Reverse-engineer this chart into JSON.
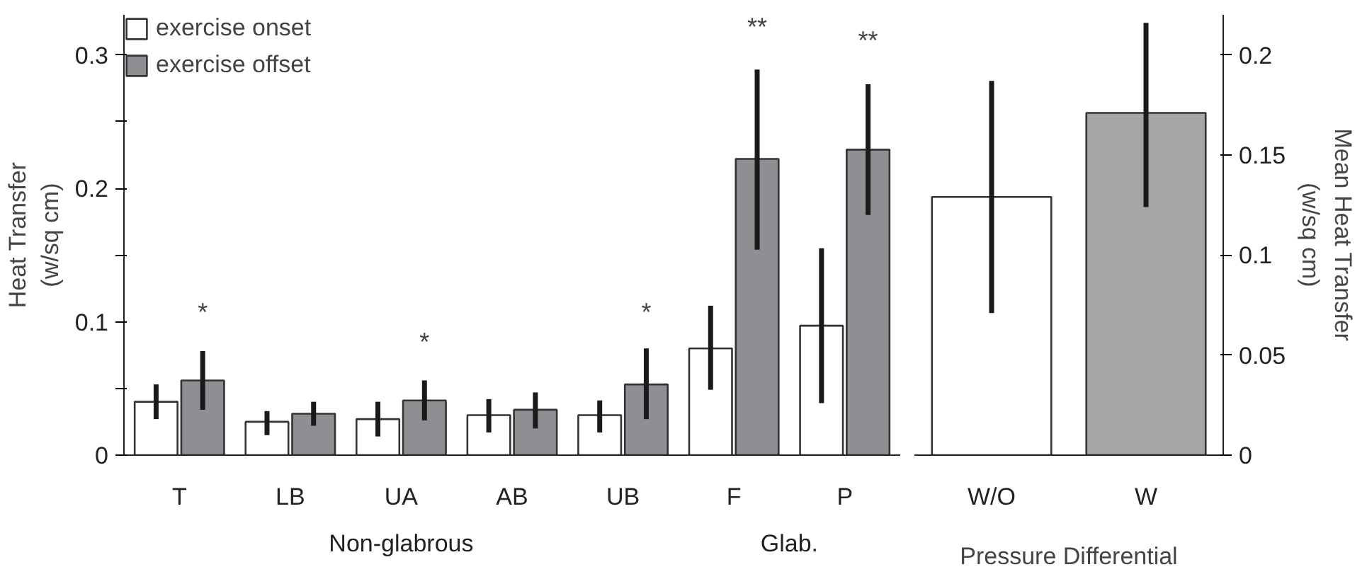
{
  "chart_data": [
    {
      "type": "bar",
      "ylabel": "Heat Transfer\n(w/sq cm)",
      "categories": [
        "T",
        "LB",
        "UA",
        "AB",
        "UB",
        "F",
        "P"
      ],
      "series": [
        {
          "name": "exercise onset",
          "color": "#ffffff",
          "values": [
            0.04,
            0.025,
            0.027,
            0.03,
            0.03,
            0.08,
            0.097
          ],
          "errors": [
            [
              0.027,
              0.053
            ],
            [
              0.015,
              0.033
            ],
            [
              0.014,
              0.04
            ],
            [
              0.017,
              0.042
            ],
            [
              0.017,
              0.041
            ],
            [
              0.049,
              0.112
            ],
            [
              0.039,
              0.155
            ]
          ]
        },
        {
          "name": "exercise offset",
          "color": "#8e8f92",
          "values": [
            0.056,
            0.031,
            0.041,
            0.034,
            0.053,
            0.222,
            0.229
          ],
          "errors": [
            [
              0.034,
              0.078
            ],
            [
              0.022,
              0.04
            ],
            [
              0.026,
              0.056
            ],
            [
              0.02,
              0.047
            ],
            [
              0.027,
              0.08
            ],
            [
              0.154,
              0.289
            ],
            [
              0.18,
              0.278
            ]
          ]
        }
      ],
      "ylim": [
        0,
        0.33
      ],
      "yticks": [
        0,
        {
          "value": 0.05,
          "label": null
        },
        0.1,
        {
          "value": 0.15,
          "label": null
        },
        0.2,
        {
          "value": 0.25,
          "label": null
        },
        0.3
      ],
      "annotations": [
        "*",
        "*",
        "*",
        "**",
        "**",
        "Non-glabrous",
        "Glab."
      ],
      "legend": "top left",
      "grid": false
    },
    {
      "type": "bar",
      "xlabel": "Pressure Differential",
      "y2label": "Mean Heat Transfer\n(w/sq cm)",
      "categories": [
        "W/O",
        "W"
      ],
      "series": [
        {
          "axis": "y2",
          "colors": [
            "#ffffff",
            "#a5a6a8"
          ],
          "values": [
            0.129,
            0.171
          ],
          "errors": [
            [
              0.071,
              0.187
            ],
            [
              0.124,
              0.216
            ]
          ]
        }
      ],
      "y2lim": [
        0,
        0.22
      ],
      "y2ticks": [
        0,
        0.05,
        0.1,
        0.15,
        0.2
      ],
      "grid": false
    }
  ]
}
